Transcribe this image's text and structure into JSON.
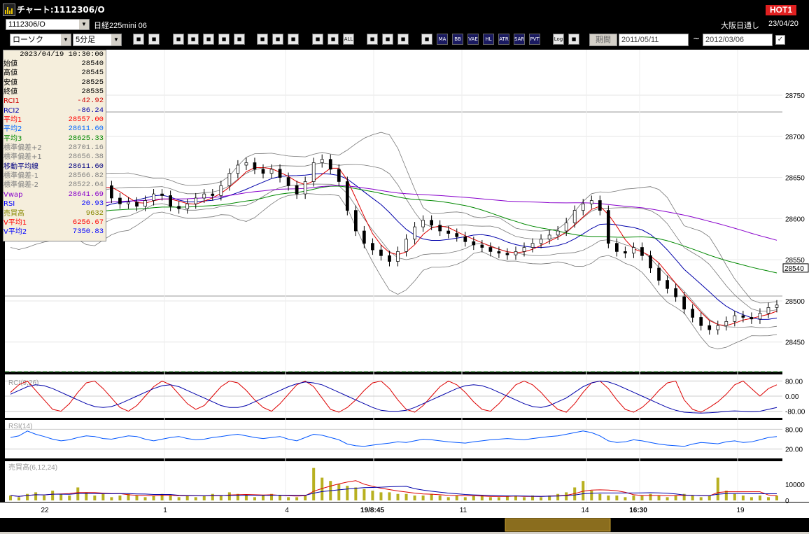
{
  "window": {
    "title": "チャート:1112306/O",
    "hot_badge": "HOT1"
  },
  "infobar": {
    "symbol": "1112306/O",
    "instrument": "日経225mini 06",
    "session": "大阪日通し",
    "date": "23/04/20"
  },
  "toolbar": {
    "chart_type": "ローソク",
    "interval": "5分足",
    "buttons": [
      "zoom-in",
      "crosshair",
      "download",
      "magnify",
      "chart-a",
      "chart-b",
      "chart-c",
      "pen",
      "cursor",
      "undo",
      "candle-a",
      "candle-b",
      "all",
      "settings",
      "draw",
      "color",
      "grid",
      "ma",
      "bb",
      "vwap",
      "hl",
      "atr",
      "sar",
      "pvt",
      "log",
      "export"
    ],
    "button_labels": {
      "all": "ALL",
      "ma": "MA",
      "bb": "BB",
      "vwap": "VAE",
      "hl": "HL",
      "atr": "ATR",
      "sar": "SAR",
      "pvt": "PVT",
      "log": "Log"
    },
    "period_button": "期間",
    "date_from": "2011/05/11",
    "date_to": "2012/03/06",
    "tilde": "~"
  },
  "info_panel": {
    "datetime": "2023/04/19  10:30:00",
    "rows": [
      {
        "label": "始値",
        "value": "28540",
        "color": "#000000"
      },
      {
        "label": "高値",
        "value": "28545",
        "color": "#000000"
      },
      {
        "label": "安値",
        "value": "28525",
        "color": "#000000"
      },
      {
        "label": "終値",
        "value": "28535",
        "color": "#000000"
      },
      {
        "label": "RCI1",
        "value": "-42.92",
        "color": "#cc0000"
      },
      {
        "label": "RCI2",
        "value": "-86.24",
        "color": "#0000aa"
      },
      {
        "label": "平均1",
        "value": "28557.00",
        "color": "#ff0000"
      },
      {
        "label": "平均2",
        "value": "28611.60",
        "color": "#0066ff"
      },
      {
        "label": "平均3",
        "value": "28625.33",
        "color": "#008800"
      },
      {
        "label": "標準偏差+2",
        "value": "28701.16",
        "color": "#808080"
      },
      {
        "label": "標準偏差+1",
        "value": "28656.38",
        "color": "#808080"
      },
      {
        "label": "移動平均線",
        "value": "28611.60",
        "color": "#000080"
      },
      {
        "label": "標準偏差-1",
        "value": "28566.82",
        "color": "#808080"
      },
      {
        "label": "標準偏差-2",
        "value": "28522.04",
        "color": "#808080"
      },
      {
        "label": "Vwap",
        "value": "28641.69",
        "color": "#8800cc"
      },
      {
        "label": "RSI",
        "value": "20.93",
        "color": "#0000ff"
      },
      {
        "label": "売買高",
        "value": "9632",
        "color": "#888800"
      },
      {
        "label": "V平均1",
        "value": "6256.67",
        "color": "#ff0000"
      },
      {
        "label": "V平均2",
        "value": "7350.83",
        "color": "#0000ff"
      }
    ]
  },
  "chart_data": {
    "type": "line",
    "price_axis": {
      "ticks": [
        "28750",
        "28700",
        "28650",
        "28600",
        "28550",
        "28500",
        "28450"
      ],
      "min": 28420,
      "max": 28790,
      "current": "28540"
    },
    "rci_panel": {
      "label": "RCI(9,26)",
      "ticks": [
        "80.00",
        "0.00",
        "-80.00"
      ]
    },
    "rsi_panel": {
      "label": "RSI(14)",
      "ticks": [
        "80.00",
        "20.00"
      ]
    },
    "volume_panel": {
      "label": "売買高(6,12,24)",
      "ticks": [
        "10000",
        "0"
      ]
    },
    "x_labels": [
      {
        "label": "22",
        "bold": false
      },
      {
        "label": "1",
        "bold": false
      },
      {
        "label": "4",
        "bold": false
      },
      {
        "label": "19/8:45",
        "bold": true
      },
      {
        "label": "11",
        "bold": false
      },
      {
        "label": "14",
        "bold": false
      },
      {
        "label": "16:30",
        "bold": true
      },
      {
        "label": "19",
        "bold": false
      }
    ],
    "close_series": [
      28585,
      28580,
      28590,
      28600,
      28610,
      28595,
      28598,
      28602,
      28620,
      28640,
      28648,
      28640,
      28625,
      28618,
      28620,
      28615,
      28622,
      28630,
      28628,
      28615,
      28612,
      28618,
      28625,
      28630,
      28628,
      28640,
      28655,
      28665,
      28668,
      28660,
      28655,
      28660,
      28650,
      28640,
      28630,
      28645,
      28668,
      28672,
      28660,
      28645,
      28610,
      28585,
      28570,
      28562,
      28555,
      28548,
      28560,
      28575,
      28590,
      28598,
      28592,
      28585,
      28582,
      28578,
      28572,
      28568,
      28565,
      28560,
      28558,
      28556,
      28560,
      28565,
      28570,
      28575,
      28580,
      28585,
      28595,
      28610,
      28618,
      28622,
      28610,
      28570,
      28560,
      28558,
      28565,
      28555,
      28540,
      28525,
      28515,
      28505,
      28490,
      28480,
      28470,
      28465,
      28470,
      28475,
      28482,
      28480,
      28478,
      28485,
      28492,
      28495
    ],
    "rci1_series": [
      20,
      60,
      80,
      30,
      -20,
      -70,
      -80,
      -40,
      20,
      70,
      80,
      40,
      -10,
      -60,
      -80,
      -50,
      0,
      50,
      80,
      60,
      10,
      -40,
      -70,
      -50,
      0,
      50,
      80,
      70,
      30,
      -20,
      -60,
      -80,
      -40,
      10,
      60,
      80,
      50,
      -10,
      -70,
      -85,
      -60,
      -20,
      30,
      70,
      80,
      40,
      -20,
      -70,
      -85,
      -50,
      0,
      50,
      80,
      60,
      20,
      -30,
      -70,
      -80,
      -40,
      10,
      60,
      80,
      60,
      20,
      -30,
      -70,
      -85,
      -40,
      20,
      70,
      80,
      40,
      -20,
      -70,
      -85,
      -60,
      -20,
      30,
      70,
      80,
      -20,
      -70,
      -85,
      -60,
      -30,
      10,
      60,
      80,
      40,
      0,
      40,
      60
    ],
    "rci2_series": [
      10,
      30,
      50,
      60,
      55,
      40,
      20,
      0,
      -20,
      -40,
      -55,
      -60,
      -55,
      -40,
      -20,
      0,
      20,
      40,
      55,
      60,
      50,
      30,
      10,
      -10,
      -30,
      -50,
      -60,
      -60,
      -50,
      -30,
      -10,
      10,
      30,
      50,
      65,
      75,
      70,
      60,
      40,
      20,
      0,
      -20,
      -40,
      -60,
      -75,
      -80,
      -80,
      -75,
      -60,
      -40,
      -20,
      0,
      20,
      40,
      55,
      60,
      55,
      40,
      20,
      0,
      -20,
      -40,
      -55,
      -60,
      -50,
      -30,
      -10,
      20,
      50,
      70,
      80,
      75,
      60,
      40,
      20,
      0,
      -20,
      -40,
      -60,
      -75,
      -85,
      -88,
      -90,
      -88,
      -85,
      -80,
      -78,
      -80,
      -82,
      -80,
      -70,
      -60
    ],
    "rsi_series": [
      55,
      60,
      75,
      65,
      58,
      50,
      45,
      48,
      55,
      60,
      58,
      52,
      50,
      55,
      60,
      58,
      50,
      45,
      50,
      55,
      58,
      52,
      48,
      50,
      55,
      58,
      62,
      65,
      60,
      55,
      52,
      55,
      58,
      50,
      45,
      55,
      65,
      62,
      55,
      48,
      35,
      30,
      28,
      32,
      35,
      38,
      42,
      40,
      45,
      50,
      48,
      45,
      42,
      40,
      38,
      42,
      45,
      48,
      50,
      52,
      50,
      48,
      52,
      55,
      58,
      60,
      65,
      70,
      75,
      70,
      60,
      45,
      40,
      42,
      48,
      45,
      40,
      35,
      32,
      30,
      28,
      35,
      40,
      38,
      36,
      42,
      45,
      40,
      42,
      48,
      55,
      58
    ],
    "volume_series": [
      3,
      2,
      4,
      5,
      3,
      6,
      4,
      3,
      8,
      5,
      3,
      4,
      2,
      3,
      4,
      3,
      2,
      3,
      4,
      3,
      2,
      3,
      2,
      3,
      4,
      3,
      5,
      4,
      3,
      2,
      3,
      4,
      3,
      2,
      2,
      3,
      20,
      14,
      12,
      10,
      9,
      8,
      7,
      6,
      5,
      5,
      4,
      4,
      3,
      3,
      4,
      3,
      2,
      3,
      2,
      3,
      3,
      2,
      2,
      3,
      3,
      2,
      3,
      2,
      3,
      4,
      5,
      8,
      12,
      6,
      4,
      3,
      3,
      2,
      3,
      3,
      4,
      3,
      2,
      3,
      4,
      3,
      2,
      3,
      14,
      6,
      4,
      3,
      2,
      3,
      2,
      3
    ]
  }
}
